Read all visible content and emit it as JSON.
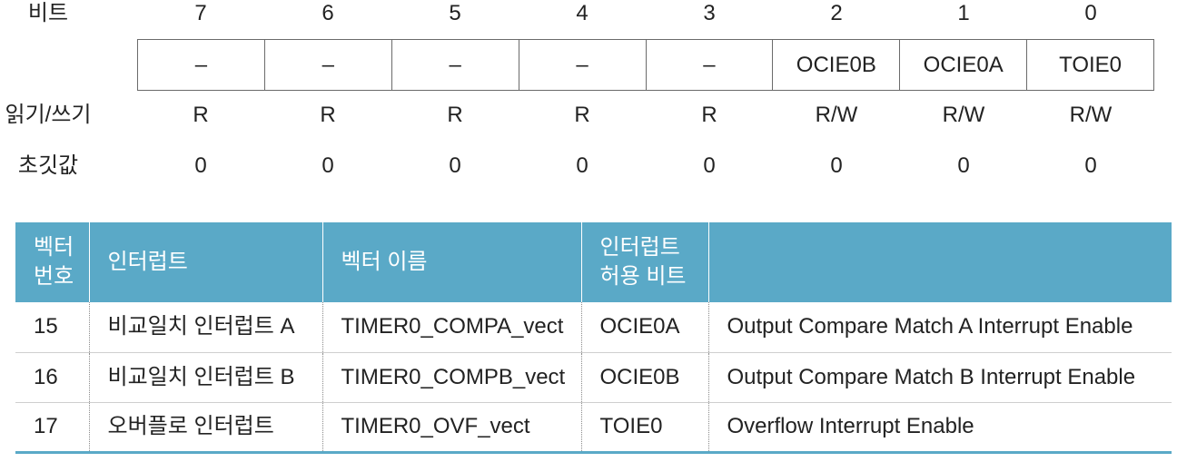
{
  "register": {
    "bit_label": "비트",
    "bits": [
      "7",
      "6",
      "5",
      "4",
      "3",
      "2",
      "1",
      "0"
    ],
    "bit_names": [
      "–",
      "–",
      "–",
      "–",
      "–",
      "OCIE0B",
      "OCIE0A",
      "TOIE0"
    ],
    "rw_label": "읽기/쓰기",
    "rw": [
      "R",
      "R",
      "R",
      "R",
      "R",
      "R/W",
      "R/W",
      "R/W"
    ],
    "init_label": "초깃값",
    "init": [
      "0",
      "0",
      "0",
      "0",
      "0",
      "0",
      "0",
      "0"
    ]
  },
  "vector_table": {
    "headers": {
      "number": "벡터\n번호",
      "interrupt": "인터럽트",
      "vector_name": "벡터 이름",
      "enable_bit": "인터럽트\n허용 비트"
    },
    "rows": [
      {
        "number": "15",
        "interrupt": "비교일치 인터럽트 A",
        "vector_name": "TIMER0_COMPA_vect",
        "enable_bit": "OCIE0A",
        "description": "Output Compare Match A Interrupt Enable"
      },
      {
        "number": "16",
        "interrupt": "비교일치 인터럽트 B",
        "vector_name": "TIMER0_COMPB_vect",
        "enable_bit": "OCIE0B",
        "description": "Output Compare Match B Interrupt Enable"
      },
      {
        "number": "17",
        "interrupt": "오버플로 인터럽트",
        "vector_name": "TIMER0_OVF_vect",
        "enable_bit": "TOIE0",
        "description": "Overflow Interrupt Enable"
      }
    ]
  },
  "colors": {
    "header_bg": "#5aa9c7",
    "header_text": "#ffffff",
    "text": "#222222",
    "register_border": "#6b6b6b"
  }
}
